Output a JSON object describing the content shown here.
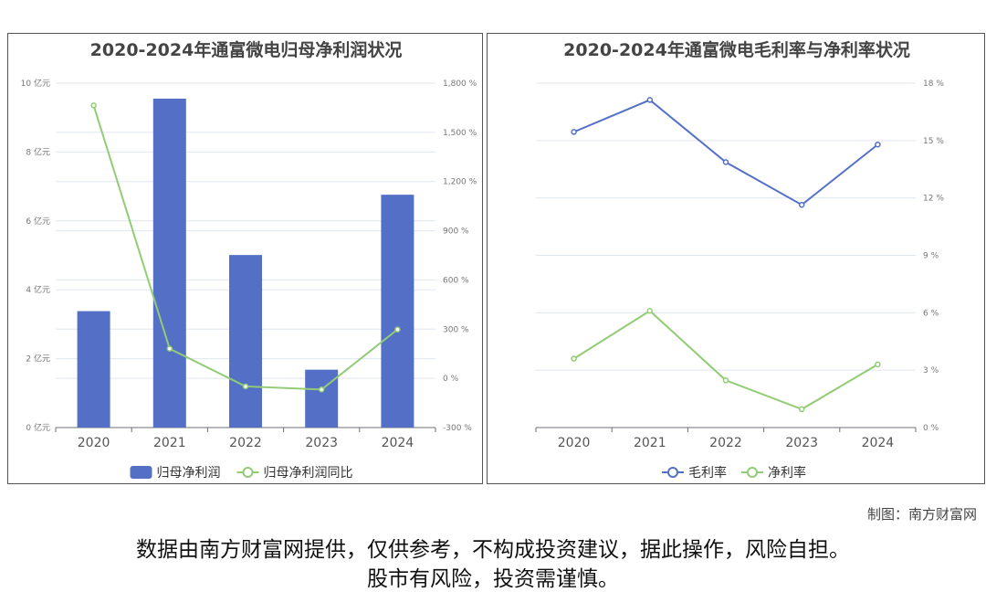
{
  "chart_data": [
    {
      "type": "bar+line",
      "title": "2020-2024年通富微电归母净利润状况",
      "categories": [
        "2020",
        "2021",
        "2022",
        "2023",
        "2024"
      ],
      "series": [
        {
          "name": "归母净利润",
          "type": "bar",
          "axis": "left",
          "color": "#5470c6",
          "values": [
            3.38,
            9.55,
            5.01,
            1.68,
            6.76
          ]
        },
        {
          "name": "归母净利润同比",
          "type": "line",
          "axis": "right",
          "color": "#91cc75",
          "values": [
            1664,
            181,
            -49,
            -68,
            298
          ]
        }
      ],
      "y_left": {
        "ticks": [
          "0 亿元",
          "2 亿元",
          "4 亿元",
          "6 亿元",
          "8 亿元",
          "10 亿元"
        ],
        "range": [
          0,
          10
        ]
      },
      "y_right": {
        "ticks": [
          "-300 %",
          "0 %",
          "300 %",
          "600 %",
          "900 %",
          "1,200 %",
          "1,500 %",
          "1,800 %"
        ],
        "range": [
          -300,
          1800
        ]
      },
      "grid": true,
      "legend": "bottom"
    },
    {
      "type": "line",
      "title": "2020-2024年通富微电毛利率与净利率状况",
      "categories": [
        "2020",
        "2021",
        "2022",
        "2023",
        "2024"
      ],
      "series": [
        {
          "name": "毛利率",
          "color": "#5470c6",
          "values": [
            15.45,
            17.12,
            13.87,
            11.64,
            14.79
          ]
        },
        {
          "name": "净利率",
          "color": "#91cc75",
          "values": [
            3.6,
            6.1,
            2.47,
            0.96,
            3.3
          ]
        }
      ],
      "y_right": {
        "ticks": [
          "0 %",
          "3 %",
          "6 %",
          "9 %",
          "12 %",
          "15 %",
          "18 %"
        ],
        "range": [
          0,
          18
        ]
      },
      "grid": true,
      "legend": "bottom"
    }
  ],
  "credit": "制图：南方财富网",
  "disclaimer": [
    "数据由南方财富网提供，仅供参考，不构成投资建议，据此操作，风险自担。",
    "股市有风险，投资需谨慎。"
  ]
}
